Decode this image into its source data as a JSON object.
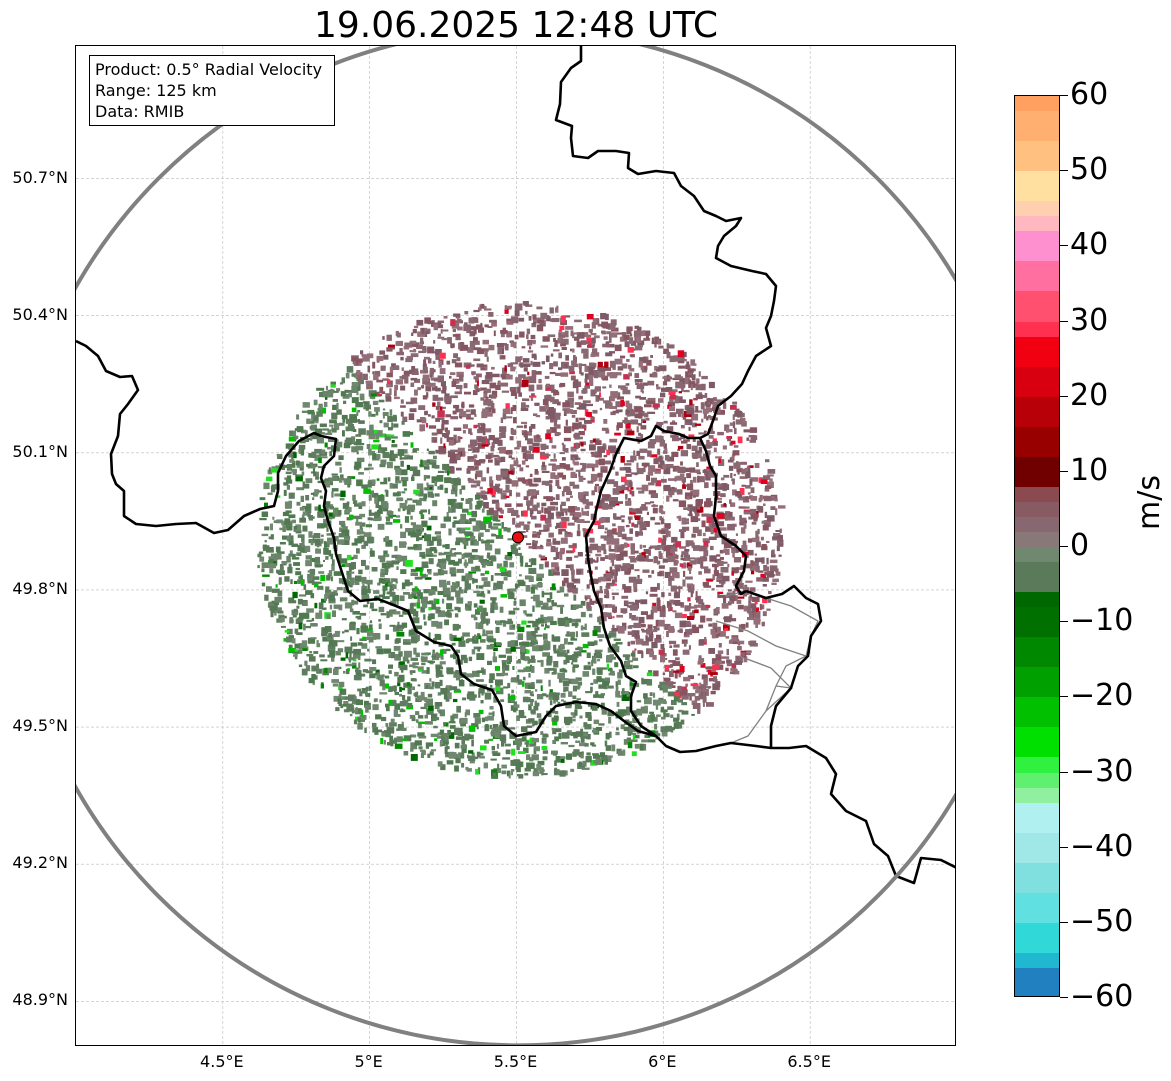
{
  "title": "19.06.2025 12:48 UTC",
  "info_box": {
    "product": "Product: 0.5° Radial Velocity",
    "range": "Range: 125 km",
    "data": "Data: RMIB"
  },
  "map": {
    "lon_range": [
      4.0,
      7.0
    ],
    "lat_range": [
      48.8,
      50.99
    ],
    "radar_site": {
      "lon": 5.505,
      "lat": 49.915
    },
    "range_ring_km": 125,
    "y_ticks": [
      {
        "lat": 50.7,
        "label": "50.7°N"
      },
      {
        "lat": 50.4,
        "label": "50.4°N"
      },
      {
        "lat": 50.1,
        "label": "50.1°N"
      },
      {
        "lat": 49.8,
        "label": "49.8°N"
      },
      {
        "lat": 49.5,
        "label": "49.5°N"
      },
      {
        "lat": 49.2,
        "label": "49.2°N"
      },
      {
        "lat": 48.9,
        "label": "48.9°N"
      }
    ],
    "x_ticks": [
      {
        "lon": 4.5,
        "label": "4.5°E"
      },
      {
        "lon": 5.0,
        "label": "5°E"
      },
      {
        "lon": 5.5,
        "label": "5.5°E"
      },
      {
        "lon": 6.0,
        "label": "6°E"
      },
      {
        "lon": 6.5,
        "label": "6.5°E"
      }
    ],
    "grid": true,
    "colors": {
      "ring": "#808080",
      "border": "#000000",
      "admin": "#808080",
      "site": "#e81010"
    }
  },
  "colorbar": {
    "unit": "m/s",
    "min": -60,
    "max": 60,
    "ticks": [
      {
        "value": 60,
        "label": "60"
      },
      {
        "value": 50,
        "label": "50"
      },
      {
        "value": 40,
        "label": "40"
      },
      {
        "value": 30,
        "label": "30"
      },
      {
        "value": 20,
        "label": "20"
      },
      {
        "value": 10,
        "label": "10"
      },
      {
        "value": 0,
        "label": "0"
      },
      {
        "value": -10,
        "label": "−10"
      },
      {
        "value": -20,
        "label": "−20"
      },
      {
        "value": -30,
        "label": "−30"
      },
      {
        "value": -40,
        "label": "−40"
      },
      {
        "value": -50,
        "label": "−50"
      },
      {
        "value": -60,
        "label": "−60"
      }
    ],
    "stops": [
      {
        "from": 58,
        "to": 60,
        "color": "#ffa060"
      },
      {
        "from": 54,
        "to": 58,
        "color": "#ffb070"
      },
      {
        "from": 50,
        "to": 54,
        "color": "#ffc080"
      },
      {
        "from": 46,
        "to": 50,
        "color": "#ffe0a0"
      },
      {
        "from": 44,
        "to": 46,
        "color": "#ffd0b0"
      },
      {
        "from": 42,
        "to": 44,
        "color": "#ffb8c0"
      },
      {
        "from": 38,
        "to": 42,
        "color": "#ff90d0"
      },
      {
        "from": 34,
        "to": 38,
        "color": "#ff70a0"
      },
      {
        "from": 30,
        "to": 34,
        "color": "#ff5070"
      },
      {
        "from": 28,
        "to": 30,
        "color": "#ff3050"
      },
      {
        "from": 24,
        "to": 28,
        "color": "#f00010"
      },
      {
        "from": 20,
        "to": 24,
        "color": "#d80010"
      },
      {
        "from": 16,
        "to": 20,
        "color": "#b80008"
      },
      {
        "from": 12,
        "to": 16,
        "color": "#980000"
      },
      {
        "from": 8,
        "to": 12,
        "color": "#700000"
      },
      {
        "from": 6,
        "to": 8,
        "color": "#8a4a50"
      },
      {
        "from": 4,
        "to": 6,
        "color": "#885a62"
      },
      {
        "from": 2,
        "to": 4,
        "color": "#886870"
      },
      {
        "from": 0,
        "to": 2,
        "color": "#887878"
      },
      {
        "from": -2,
        "to": 0,
        "color": "#708870"
      },
      {
        "from": -6,
        "to": -2,
        "color": "#5a7a5a"
      },
      {
        "from": -8,
        "to": -6,
        "color": "#006800"
      },
      {
        "from": -12,
        "to": -8,
        "color": "#007000"
      },
      {
        "from": -16,
        "to": -12,
        "color": "#008800"
      },
      {
        "from": -20,
        "to": -16,
        "color": "#00a000"
      },
      {
        "from": -24,
        "to": -20,
        "color": "#00c000"
      },
      {
        "from": -28,
        "to": -24,
        "color": "#00e000"
      },
      {
        "from": -30,
        "to": -28,
        "color": "#30f040"
      },
      {
        "from": -32,
        "to": -30,
        "color": "#60f070"
      },
      {
        "from": -34,
        "to": -32,
        "color": "#90f0a0"
      },
      {
        "from": -38,
        "to": -34,
        "color": "#b0f0f0"
      },
      {
        "from": -42,
        "to": -38,
        "color": "#a0e8e8"
      },
      {
        "from": -46,
        "to": -42,
        "color": "#80e0e0"
      },
      {
        "from": -50,
        "to": -46,
        "color": "#60e0e0"
      },
      {
        "from": -54,
        "to": -50,
        "color": "#30d8d8"
      },
      {
        "from": -56,
        "to": -54,
        "color": "#20b8d0"
      },
      {
        "from": -60,
        "to": -56,
        "color": "#2080c0"
      }
    ]
  }
}
